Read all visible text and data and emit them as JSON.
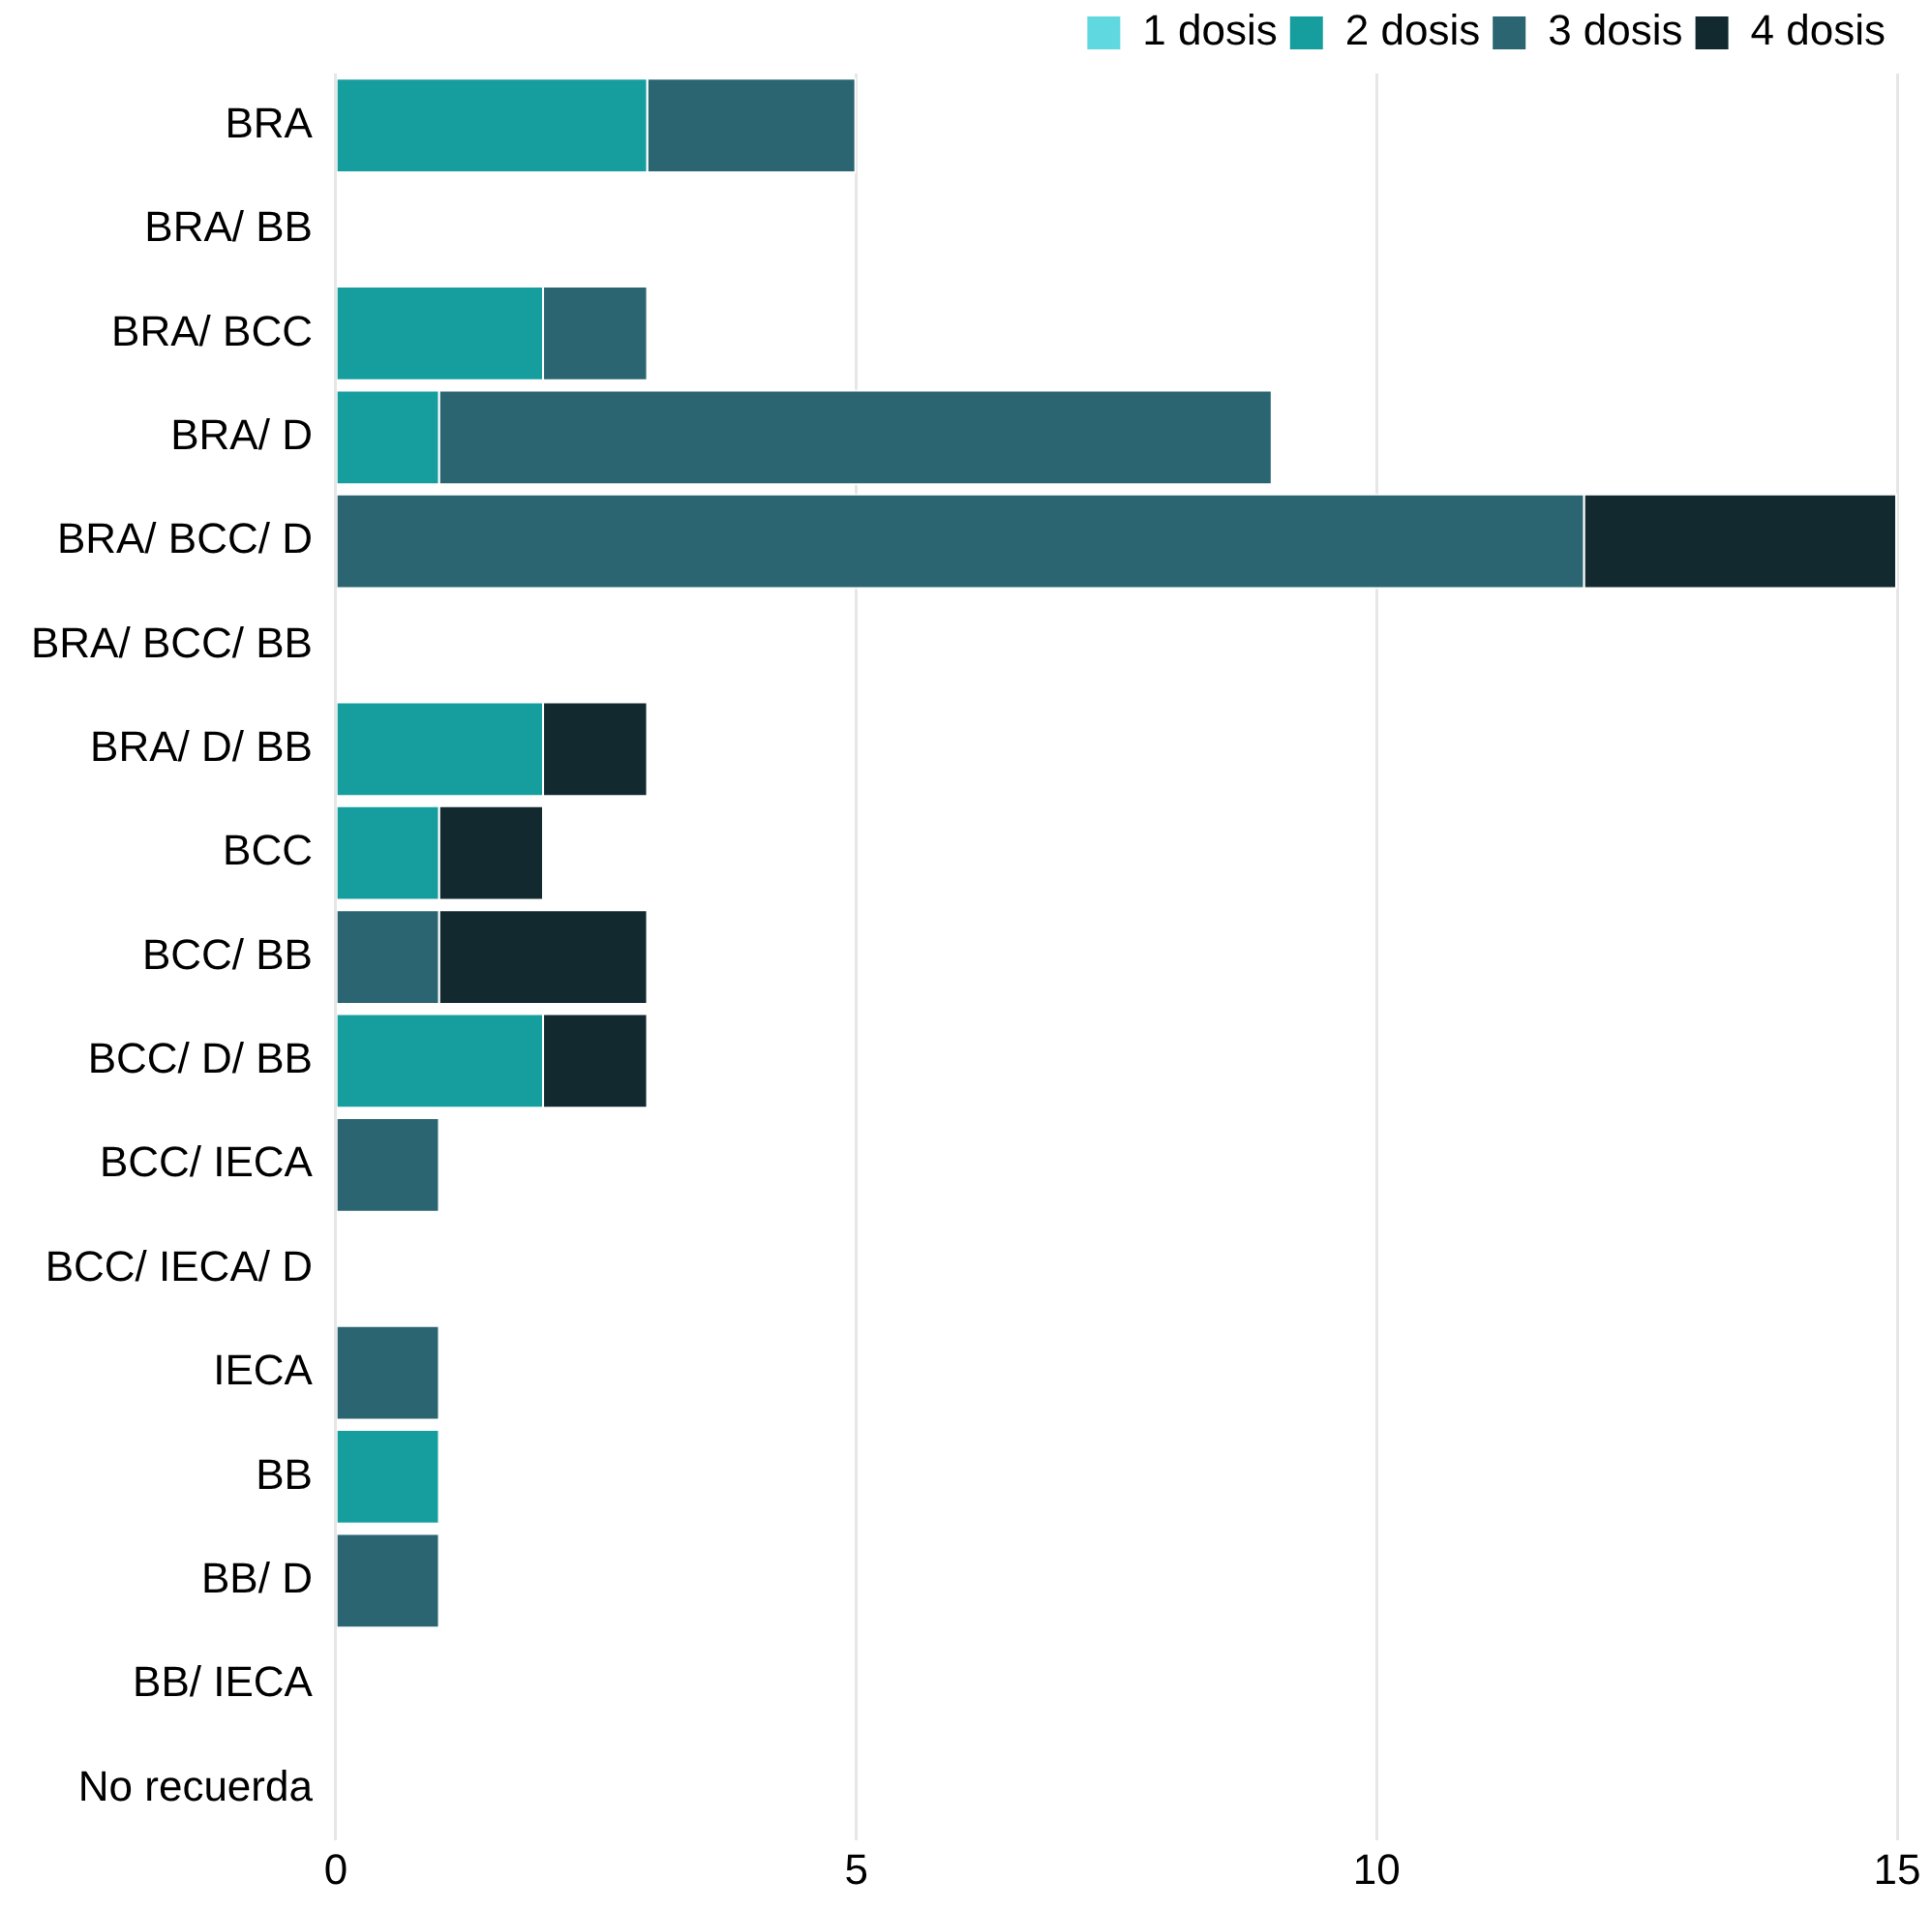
{
  "chart_data": {
    "type": "bar",
    "orientation": "horizontal",
    "stacked": true,
    "categories": [
      "BRA",
      "BRA/ BB",
      "BRA/ BCC",
      "BRA/ D",
      "BRA/ BCC/ D",
      "BRA/ BCC/ BB",
      "BRA/ D/ BB",
      "BCC",
      "BCC/ BB",
      "BCC/ D/ BB",
      "BCC/ IECA",
      "BCC/ IECA/ D",
      "IECA",
      "BB",
      "BB/ D",
      "BB/ IECA",
      "No recuerda"
    ],
    "series": [
      {
        "name": "1 dosis",
        "color": "#5fd8e0",
        "values": [
          0,
          0,
          0,
          0,
          0,
          0,
          0,
          0,
          0,
          0,
          0,
          0,
          0,
          0,
          0,
          0,
          0
        ]
      },
      {
        "name": "2 dosis",
        "color": "#169e9f",
        "values": [
          3,
          0,
          2,
          1,
          0,
          0,
          2,
          1,
          0,
          2,
          0,
          0,
          0,
          1,
          0,
          0,
          0
        ]
      },
      {
        "name": "3 dosis",
        "color": "#2a6571",
        "values": [
          2,
          0,
          1,
          8,
          12,
          0,
          0,
          0,
          1,
          0,
          1,
          0,
          1,
          0,
          1,
          0,
          0
        ]
      },
      {
        "name": "4 dosis",
        "color": "#11292f",
        "values": [
          0,
          0,
          0,
          0,
          3,
          0,
          1,
          1,
          2,
          1,
          0,
          0,
          0,
          0,
          0,
          0,
          0
        ]
      }
    ],
    "xlim": [
      0,
      15
    ],
    "xticks": [
      0,
      5,
      10,
      15
    ],
    "grid": "x",
    "legend": "top"
  }
}
